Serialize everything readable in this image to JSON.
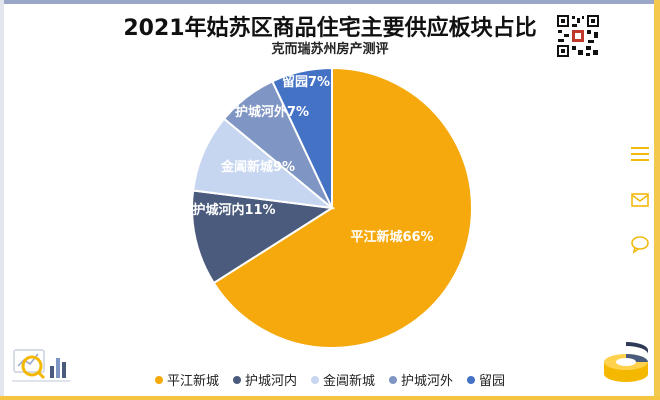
{
  "chart_data": {
    "type": "pie",
    "title": "2021年姑苏区商品住宅主要供应板块占比",
    "subtitle": "克而瑞苏州房产测评",
    "slices": [
      {
        "label": "平江新城",
        "value": 66,
        "display": "平江新城66%",
        "color": "#f5a90d"
      },
      {
        "label": "护城河内",
        "value": 11,
        "display": "护城河内11%",
        "color": "#4b5b7d"
      },
      {
        "label": "金阊新城",
        "value": 9,
        "display": "金阊新城9%",
        "color": "#c7d6f0"
      },
      {
        "label": "护城河外",
        "value": 7,
        "display": "护城河外7%",
        "color": "#7f95c3"
      },
      {
        "label": "留园",
        "value": 7,
        "display": "留园7%",
        "color": "#4472c4"
      }
    ],
    "legend_position": "bottom"
  },
  "icons": {
    "qr": "qr-code-icon",
    "menu": "menu-icon",
    "mail": "mail-icon",
    "chat": "chat-icon"
  }
}
